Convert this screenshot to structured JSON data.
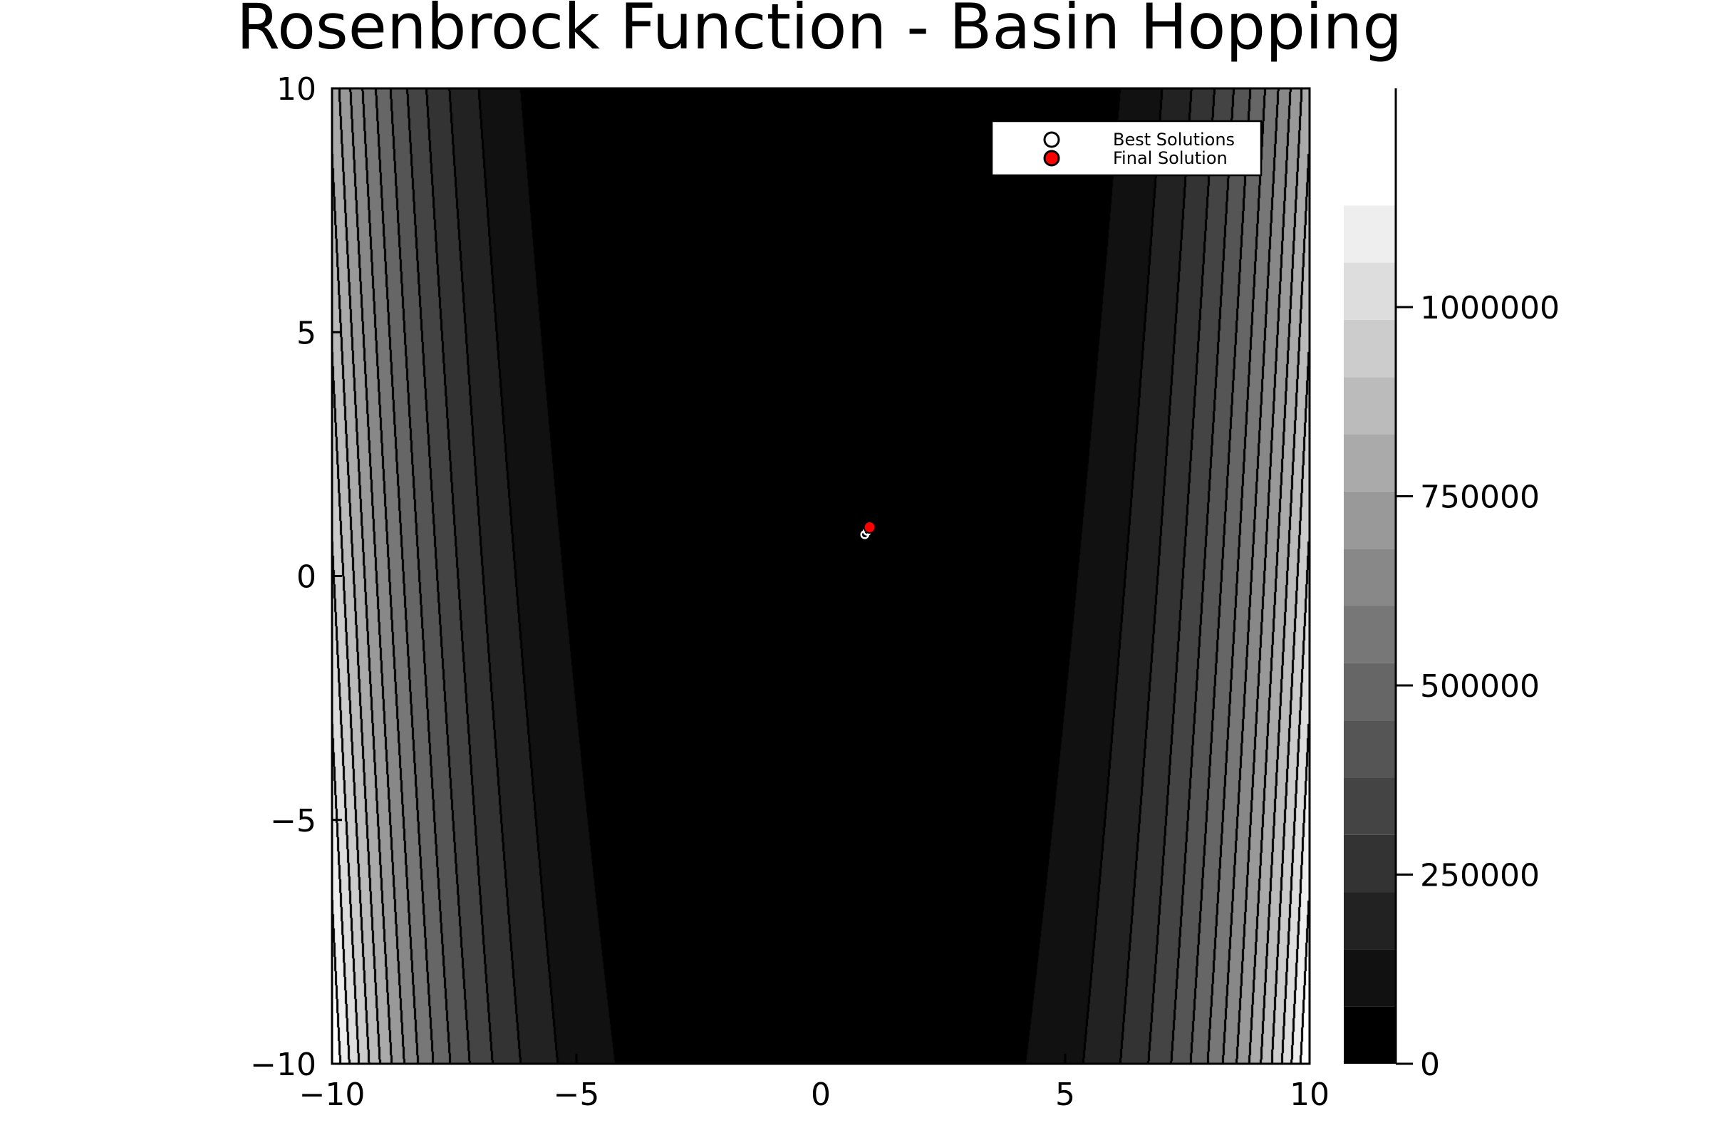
{
  "chart_data": {
    "type": "contour",
    "title": "Rosenbrock Function - Basin Hopping",
    "xlabel": "",
    "ylabel": "",
    "xlim": [
      -10,
      10
    ],
    "ylim": [
      -10,
      10
    ],
    "x_ticks": [
      -10,
      -5,
      0,
      5,
      10
    ],
    "y_ticks": [
      -10,
      -5,
      0,
      5,
      10
    ],
    "x_tick_labels": [
      "−10",
      "−5",
      "0",
      "5",
      "10"
    ],
    "y_tick_labels": [
      "−10",
      "−5",
      "0",
      "5",
      "10"
    ],
    "colorbar": {
      "range": [
        0,
        1210000
      ],
      "step": 75625,
      "ticks": [
        0,
        250000,
        500000,
        750000,
        1000000
      ],
      "tick_labels": [
        "0",
        "250000",
        "500000",
        "750000",
        "1000000"
      ]
    },
    "contour_levels": [
      75625,
      151250,
      226875,
      302500,
      378125,
      453750,
      529375,
      605000,
      680625,
      756250,
      831875,
      907500,
      983125,
      1058750,
      1134375
    ],
    "grayscale_colors": [
      "#000000",
      "#111111",
      "#222222",
      "#333333",
      "#444444",
      "#555555",
      "#666666",
      "#777777",
      "#888888",
      "#999999",
      "#aaaaaa",
      "#bbbbbb",
      "#cccccc",
      "#dddddd",
      "#eeeeee",
      "#ffffff"
    ],
    "grid": false,
    "legend": {
      "position": "top-right",
      "entries": [
        "Best Solutions",
        "Final Solution"
      ]
    },
    "series": [
      {
        "name": "Best Solutions",
        "marker": "circle-open",
        "color": "#ffffff",
        "points": [
          [
            0.9,
            0.85
          ],
          [
            0.95,
            0.92
          ],
          [
            1.0,
            1.0
          ]
        ]
      },
      {
        "name": "Final Solution",
        "marker": "circle-filled",
        "color": "#ff0000",
        "points": [
          [
            1.0,
            1.0
          ]
        ]
      }
    ]
  }
}
